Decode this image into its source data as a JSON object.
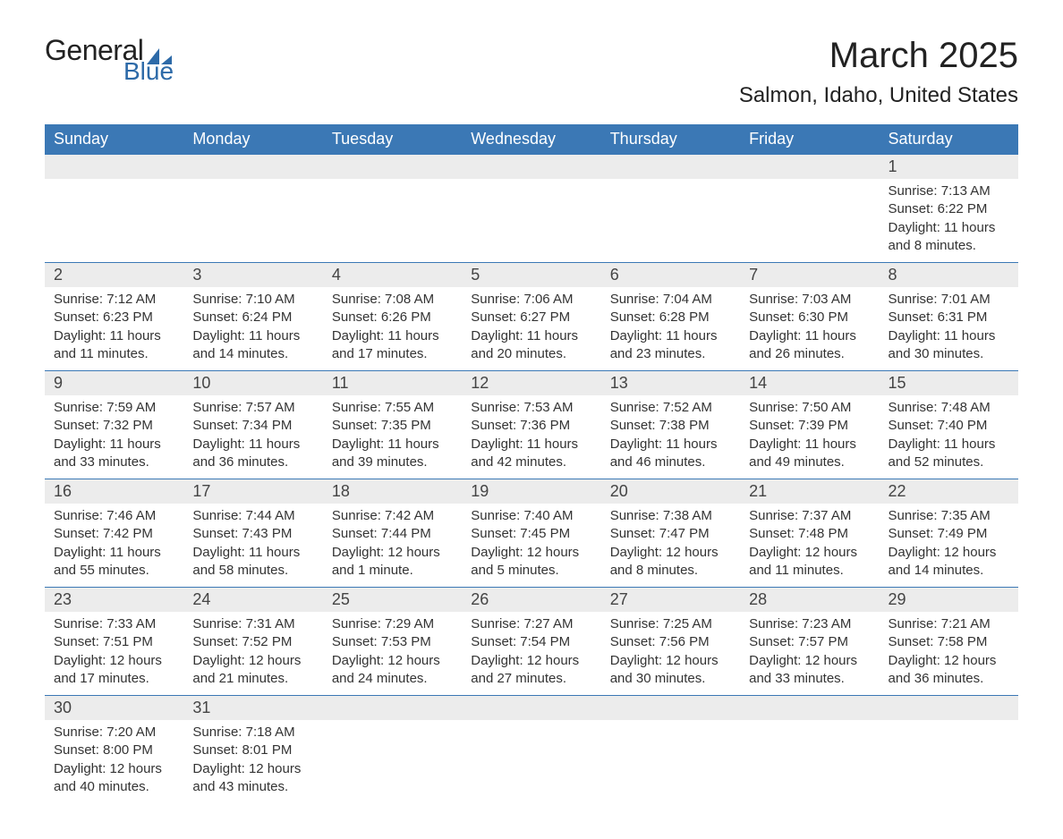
{
  "brand": {
    "word1": "General",
    "word2": "Blue",
    "accent_color": "#2d6aa8"
  },
  "title": "March 2025",
  "location": "Salmon, Idaho, United States",
  "theme": {
    "header_bg": "#3b78b5",
    "header_fg": "#ffffff",
    "daynum_bg": "#ececec",
    "row_border": "#3b78b5",
    "body_font": "Arial",
    "title_fontsize": 40,
    "location_fontsize": 24,
    "dayheader_fontsize": 18,
    "daynum_fontsize": 18,
    "cell_fontsize": 15
  },
  "day_headers": [
    "Sunday",
    "Monday",
    "Tuesday",
    "Wednesday",
    "Thursday",
    "Friday",
    "Saturday"
  ],
  "weeks": [
    [
      null,
      null,
      null,
      null,
      null,
      null,
      {
        "n": "1",
        "sr": "7:13 AM",
        "ss": "6:22 PM",
        "dl": "11 hours and 8 minutes."
      }
    ],
    [
      {
        "n": "2",
        "sr": "7:12 AM",
        "ss": "6:23 PM",
        "dl": "11 hours and 11 minutes."
      },
      {
        "n": "3",
        "sr": "7:10 AM",
        "ss": "6:24 PM",
        "dl": "11 hours and 14 minutes."
      },
      {
        "n": "4",
        "sr": "7:08 AM",
        "ss": "6:26 PM",
        "dl": "11 hours and 17 minutes."
      },
      {
        "n": "5",
        "sr": "7:06 AM",
        "ss": "6:27 PM",
        "dl": "11 hours and 20 minutes."
      },
      {
        "n": "6",
        "sr": "7:04 AM",
        "ss": "6:28 PM",
        "dl": "11 hours and 23 minutes."
      },
      {
        "n": "7",
        "sr": "7:03 AM",
        "ss": "6:30 PM",
        "dl": "11 hours and 26 minutes."
      },
      {
        "n": "8",
        "sr": "7:01 AM",
        "ss": "6:31 PM",
        "dl": "11 hours and 30 minutes."
      }
    ],
    [
      {
        "n": "9",
        "sr": "7:59 AM",
        "ss": "7:32 PM",
        "dl": "11 hours and 33 minutes."
      },
      {
        "n": "10",
        "sr": "7:57 AM",
        "ss": "7:34 PM",
        "dl": "11 hours and 36 minutes."
      },
      {
        "n": "11",
        "sr": "7:55 AM",
        "ss": "7:35 PM",
        "dl": "11 hours and 39 minutes."
      },
      {
        "n": "12",
        "sr": "7:53 AM",
        "ss": "7:36 PM",
        "dl": "11 hours and 42 minutes."
      },
      {
        "n": "13",
        "sr": "7:52 AM",
        "ss": "7:38 PM",
        "dl": "11 hours and 46 minutes."
      },
      {
        "n": "14",
        "sr": "7:50 AM",
        "ss": "7:39 PM",
        "dl": "11 hours and 49 minutes."
      },
      {
        "n": "15",
        "sr": "7:48 AM",
        "ss": "7:40 PM",
        "dl": "11 hours and 52 minutes."
      }
    ],
    [
      {
        "n": "16",
        "sr": "7:46 AM",
        "ss": "7:42 PM",
        "dl": "11 hours and 55 minutes."
      },
      {
        "n": "17",
        "sr": "7:44 AM",
        "ss": "7:43 PM",
        "dl": "11 hours and 58 minutes."
      },
      {
        "n": "18",
        "sr": "7:42 AM",
        "ss": "7:44 PM",
        "dl": "12 hours and 1 minute."
      },
      {
        "n": "19",
        "sr": "7:40 AM",
        "ss": "7:45 PM",
        "dl": "12 hours and 5 minutes."
      },
      {
        "n": "20",
        "sr": "7:38 AM",
        "ss": "7:47 PM",
        "dl": "12 hours and 8 minutes."
      },
      {
        "n": "21",
        "sr": "7:37 AM",
        "ss": "7:48 PM",
        "dl": "12 hours and 11 minutes."
      },
      {
        "n": "22",
        "sr": "7:35 AM",
        "ss": "7:49 PM",
        "dl": "12 hours and 14 minutes."
      }
    ],
    [
      {
        "n": "23",
        "sr": "7:33 AM",
        "ss": "7:51 PM",
        "dl": "12 hours and 17 minutes."
      },
      {
        "n": "24",
        "sr": "7:31 AM",
        "ss": "7:52 PM",
        "dl": "12 hours and 21 minutes."
      },
      {
        "n": "25",
        "sr": "7:29 AM",
        "ss": "7:53 PM",
        "dl": "12 hours and 24 minutes."
      },
      {
        "n": "26",
        "sr": "7:27 AM",
        "ss": "7:54 PM",
        "dl": "12 hours and 27 minutes."
      },
      {
        "n": "27",
        "sr": "7:25 AM",
        "ss": "7:56 PM",
        "dl": "12 hours and 30 minutes."
      },
      {
        "n": "28",
        "sr": "7:23 AM",
        "ss": "7:57 PM",
        "dl": "12 hours and 33 minutes."
      },
      {
        "n": "29",
        "sr": "7:21 AM",
        "ss": "7:58 PM",
        "dl": "12 hours and 36 minutes."
      }
    ],
    [
      {
        "n": "30",
        "sr": "7:20 AM",
        "ss": "8:00 PM",
        "dl": "12 hours and 40 minutes."
      },
      {
        "n": "31",
        "sr": "7:18 AM",
        "ss": "8:01 PM",
        "dl": "12 hours and 43 minutes."
      },
      null,
      null,
      null,
      null,
      null
    ]
  ],
  "labels": {
    "sunrise": "Sunrise: ",
    "sunset": "Sunset: ",
    "daylight": "Daylight: "
  }
}
